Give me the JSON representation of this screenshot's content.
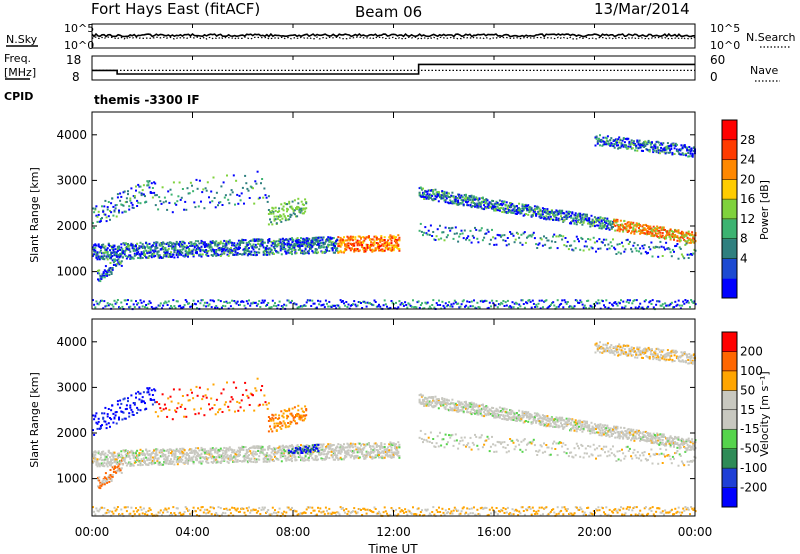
{
  "header": {
    "station": "Fort Hays East (fitACF)",
    "beam": "Beam 06",
    "date": "13/Mar/2014"
  },
  "noise_panel": {
    "left_label": "N.Sky",
    "left_ticks": [
      "10^5",
      "10^0"
    ],
    "right_label": "N.Search",
    "right_ticks": [
      "10^5",
      "10^0"
    ]
  },
  "freq_panel": {
    "left_label": "Freq.",
    "left_unit": "[MHz]",
    "left_ticks": [
      "18",
      "8"
    ],
    "right_label": "Nave",
    "right_ticks": [
      "60",
      "0"
    ],
    "cpid_label": "CPID",
    "cpid_value": "themis -3300 IF"
  },
  "colors": {
    "power_scale": [
      "#0000ff",
      "#1c4ad2",
      "#2f7f7f",
      "#3cb371",
      "#7fd23c",
      "#ffcc00",
      "#ff8800",
      "#ff3b00",
      "#ff0000"
    ],
    "velocity_scale": [
      "#0000ff",
      "#1f3fd6",
      "#2e8b57",
      "#55d44b",
      "#c8c8c0",
      "#c8c8c0",
      "#ffa500",
      "#ff6600",
      "#ff0000"
    ]
  },
  "chart_data": [
    {
      "type": "line",
      "title": "",
      "series": [
        {
          "name": "N.Sky",
          "style": "solid"
        },
        {
          "name": "N.Search",
          "style": "dotted"
        }
      ],
      "x": [
        "00:00",
        "04:00",
        "08:00",
        "12:00",
        "16:00",
        "20:00",
        "00:00"
      ],
      "note_values": "noise roughly constant near 10^3 for the whole day"
    },
    {
      "type": "line",
      "series": [
        {
          "name": "Freq.",
          "style": "solid",
          "steps": [
            [
              0,
              12
            ],
            [
              1.0,
              10.5
            ],
            [
              13.0,
              14.5
            ],
            [
              24,
              14.5
            ]
          ]
        },
        {
          "name": "Nave",
          "style": "dotted",
          "steps": [
            [
              0,
              24
            ],
            [
              24,
              24
            ]
          ]
        }
      ]
    },
    {
      "type": "heatmap",
      "ylabel": "Slant Range [km]",
      "yticks": [
        "4000",
        "3000",
        "2000",
        "1000"
      ],
      "ylim": [
        180,
        4500
      ],
      "colorbar_label": "Power [dB]",
      "colorbar_ticks": [
        "28",
        "24",
        "20",
        "16",
        "12",
        "8",
        "4"
      ]
    },
    {
      "type": "heatmap",
      "ylabel": "Slant Range [km]",
      "yticks": [
        "4000",
        "3000",
        "2000",
        "1000"
      ],
      "ylim": [
        180,
        4500
      ],
      "colorbar_label": "Velocity [m s⁻¹]",
      "colorbar_ticks": [
        "200",
        "100",
        "50",
        "15",
        "-15",
        "-50",
        "-100",
        "-200"
      ]
    }
  ],
  "x_axis": {
    "ticks": [
      "00:00",
      "04:00",
      "08:00",
      "12:00",
      "16:00",
      "20:00",
      "00:00"
    ],
    "label": "Time UT",
    "xlim_hours": [
      0,
      24
    ]
  }
}
